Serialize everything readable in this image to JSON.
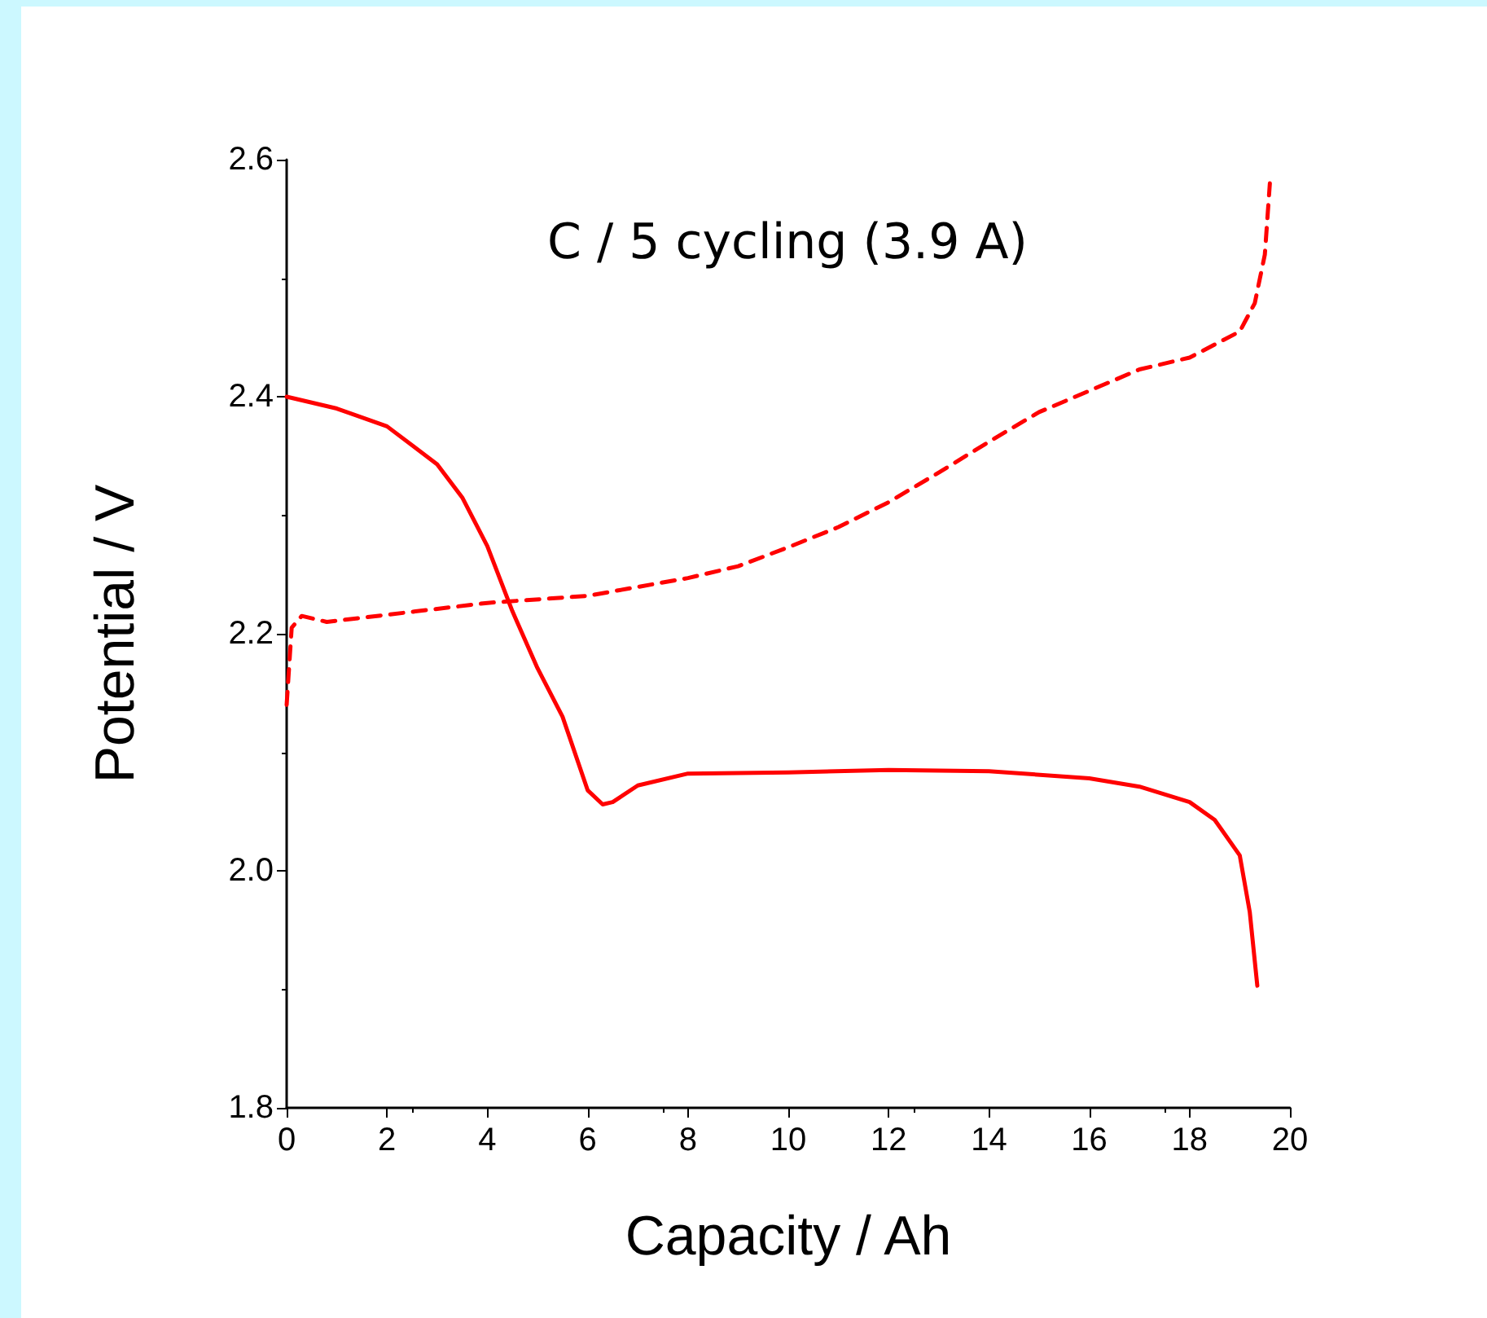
{
  "chart_data": {
    "type": "line",
    "xlabel": "Capacity / Ah",
    "ylabel": "Potential / V",
    "annotations": [
      "C / 5 cycling (3.9 A)"
    ],
    "xlim": [
      0,
      20
    ],
    "xticks": [
      0,
      2,
      4,
      6,
      8,
      10,
      12,
      14,
      16,
      18,
      20
    ],
    "ylim": [
      1.8,
      2.6
    ],
    "yticks": [
      {
        "value": 1.8,
        "label": "1.8"
      },
      {
        "value": 2.0,
        "label": "2.0"
      },
      {
        "value": 2.2,
        "label": "2.2"
      },
      {
        "value": 2.4,
        "label": "2.4"
      },
      {
        "value": 2.6,
        "label": "2.6"
      }
    ],
    "grid": false,
    "marker": "none",
    "series": [
      {
        "color": "#ff0000",
        "line_style": "solid",
        "x": [
          0,
          0.5,
          1,
          2,
          3,
          3.5,
          4,
          4.5,
          5,
          5.5,
          6,
          6.3,
          6.5,
          7,
          8,
          10,
          12,
          14,
          16,
          17,
          18,
          18.5,
          19,
          19.2,
          19.35
        ],
        "values": [
          2.4,
          2.395,
          2.39,
          2.375,
          2.343,
          2.315,
          2.274,
          2.219,
          2.171,
          2.13,
          2.068,
          2.056,
          2.058,
          2.072,
          2.082,
          2.083,
          2.085,
          2.084,
          2.078,
          2.071,
          2.058,
          2.043,
          2.013,
          1.965,
          1.903
        ]
      },
      {
        "color": "#ff0000",
        "line_style": "dashed",
        "x": [
          0,
          0.1,
          0.3,
          0.8,
          2,
          4,
          6,
          8,
          9,
          10,
          11,
          12,
          13,
          14,
          15,
          16,
          17,
          18,
          19,
          19.3,
          19.5,
          19.6
        ],
        "values": [
          2.14,
          2.205,
          2.215,
          2.21,
          2.216,
          2.226,
          2.232,
          2.247,
          2.257,
          2.273,
          2.29,
          2.311,
          2.336,
          2.362,
          2.387,
          2.405,
          2.423,
          2.433,
          2.455,
          2.479,
          2.52,
          2.58
        ]
      }
    ]
  }
}
